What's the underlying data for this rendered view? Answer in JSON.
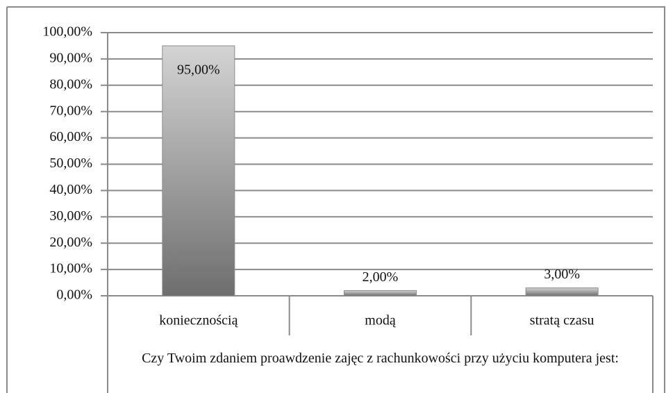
{
  "chart_data": {
    "type": "bar",
    "categories": [
      "koniecznością",
      "modą",
      "stratą czasu"
    ],
    "values": [
      95,
      2,
      3
    ],
    "value_labels": [
      "95,00%",
      "2,00%",
      "3,00%"
    ],
    "x_label": "Czy Twoim zdaniem proawdzenie zajęc z rachunkowości przy użyciu komputera jest:",
    "color": "#8c8c8c",
    "ylim": [
      0,
      100
    ],
    "yticks": [
      {
        "value": 0,
        "label": "0,00%"
      },
      {
        "value": 10,
        "label": "10,00%"
      },
      {
        "value": 20,
        "label": "20,00%"
      },
      {
        "value": 30,
        "label": "30,00%"
      },
      {
        "value": 40,
        "label": "40,00%"
      },
      {
        "value": 50,
        "label": "50,00%"
      },
      {
        "value": 60,
        "label": "60,00%"
      },
      {
        "value": 70,
        "label": "70,00%"
      },
      {
        "value": 80,
        "label": "80,00%"
      },
      {
        "value": 90,
        "label": "90,00%"
      },
      {
        "value": 100,
        "label": "100,00%"
      }
    ],
    "grid": true
  }
}
